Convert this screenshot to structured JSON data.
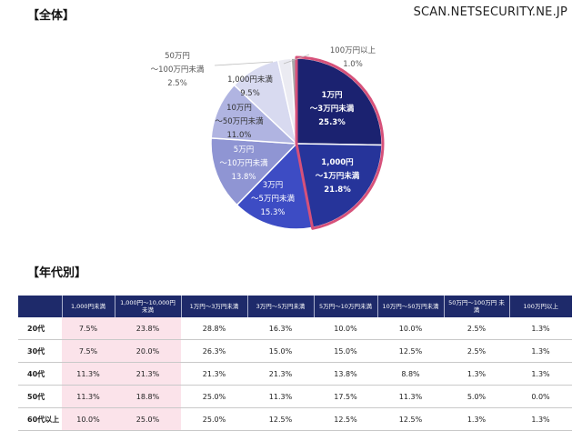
{
  "header": {
    "section_all": "【全体】",
    "section_age": "【年代別】",
    "site": "SCAN.NETSECURITY.NE.JP"
  },
  "chart_data": {
    "type": "pie",
    "title": "全体",
    "slices": [
      {
        "lines": [
          "1万円",
          "～3万円未満",
          "25.3%"
        ],
        "value": 25.3,
        "color": "#1b2270",
        "text_color": "#ffffff",
        "highlight": true
      },
      {
        "lines": [
          "1,000円",
          "～1万円未満",
          "21.8%"
        ],
        "value": 21.8,
        "color": "#26349a",
        "text_color": "#ffffff",
        "highlight": true
      },
      {
        "lines": [
          "3万円",
          "～5万円未満",
          "15.3%"
        ],
        "value": 15.3,
        "color": "#3d4cc4",
        "text_color": "#ffffff",
        "highlight": false
      },
      {
        "lines": [
          "5万円",
          "～10万円未満",
          "13.8%"
        ],
        "value": 13.8,
        "color": "#8f95d3",
        "text_color": "#ffffff",
        "highlight": false
      },
      {
        "lines": [
          "10万円",
          "～50万円未満",
          "11.0%"
        ],
        "value": 11.0,
        "color": "#b0b4e1",
        "text_color": "#333333",
        "highlight": false
      },
      {
        "lines": [
          "1,000円未満",
          "9.5%"
        ],
        "value": 9.5,
        "color": "#d8daf0",
        "text_color": "#333333",
        "highlight": false
      },
      {
        "lines": [
          "50万円",
          "～100万円未満",
          "2.5%"
        ],
        "value": 2.5,
        "color": "#ebebf2",
        "text_color": "#555555",
        "highlight": false
      },
      {
        "lines": [
          "100万円以上",
          "1.0%"
        ],
        "value": 1.0,
        "color": "#a8a8a8",
        "text_color": "#555555",
        "highlight": false
      }
    ],
    "highlight_color": "#d6517a"
  },
  "table": {
    "columns": [
      "",
      "1,000円未満",
      "1,000円～10,000円 未満",
      "1万円～3万円未満",
      "3万円～5万円未満",
      "5万円～10万円未満",
      "10万円～50万円未満",
      "50万円～100万円 未満",
      "100万円以上"
    ],
    "rows": [
      {
        "label": "20代",
        "values": [
          "7.5%",
          "23.8%",
          "28.8%",
          "16.3%",
          "10.0%",
          "10.0%",
          "2.5%",
          "1.3%"
        ]
      },
      {
        "label": "30代",
        "values": [
          "7.5%",
          "20.0%",
          "26.3%",
          "15.0%",
          "15.0%",
          "12.5%",
          "2.5%",
          "1.3%"
        ]
      },
      {
        "label": "40代",
        "values": [
          "11.3%",
          "21.3%",
          "21.3%",
          "21.3%",
          "13.8%",
          "8.8%",
          "1.3%",
          "1.3%"
        ]
      },
      {
        "label": "50代",
        "values": [
          "11.3%",
          "18.8%",
          "25.0%",
          "11.3%",
          "17.5%",
          "11.3%",
          "5.0%",
          "0.0%"
        ]
      },
      {
        "label": "60代以上",
        "values": [
          "10.0%",
          "25.0%",
          "25.0%",
          "12.5%",
          "12.5%",
          "12.5%",
          "1.3%",
          "1.3%"
        ]
      }
    ],
    "highlight_cols": [
      1,
      2
    ],
    "highlight_color": "#fbe3ea"
  }
}
